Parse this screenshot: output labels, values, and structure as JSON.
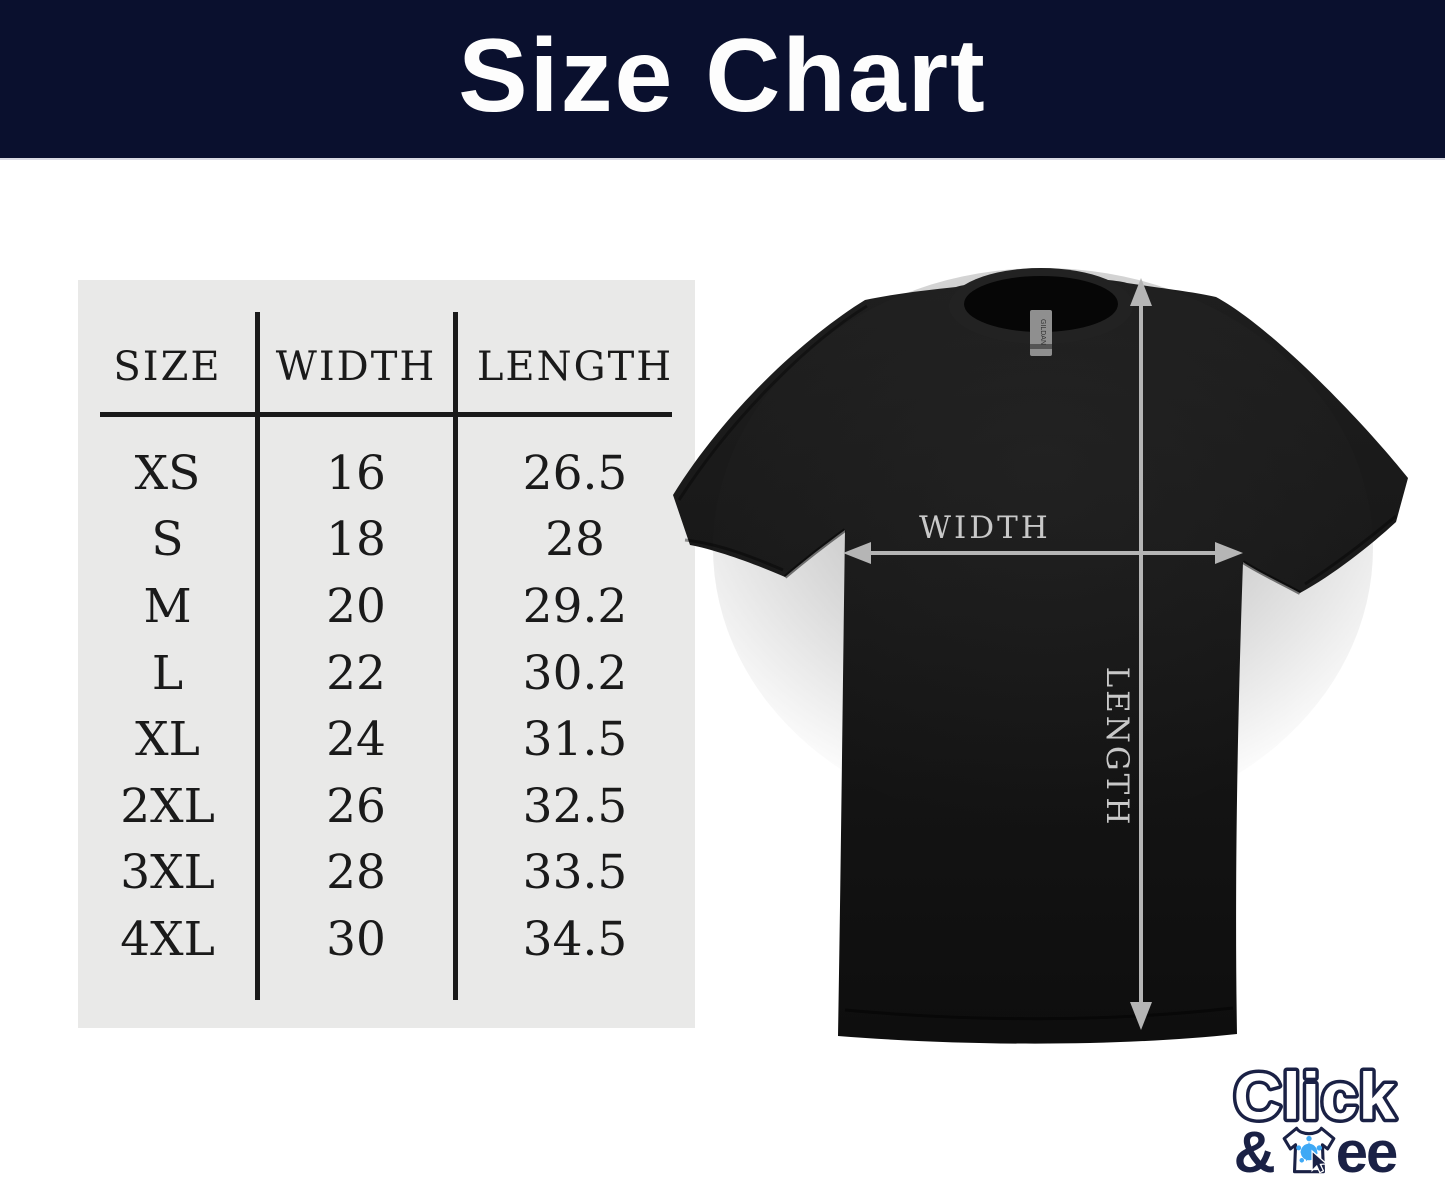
{
  "header": {
    "title": "Size Chart",
    "bg_color": "#0a102e",
    "text_color": "#fdfdfd"
  },
  "chart_data": {
    "type": "table",
    "title": "Size Chart",
    "columns": [
      "SIZE",
      "WIDTH",
      "LENGTH"
    ],
    "rows": [
      [
        "XS",
        "16",
        "26.5"
      ],
      [
        "S",
        "18",
        "28"
      ],
      [
        "M",
        "20",
        "29.2"
      ],
      [
        "L",
        "22",
        "30.2"
      ],
      [
        "XL",
        "24",
        "31.5"
      ],
      [
        "2XL",
        "26",
        "32.5"
      ],
      [
        "3XL",
        "28",
        "33.5"
      ],
      [
        "4XL",
        "30",
        "34.5"
      ]
    ],
    "panel_color": "#e9e9e8",
    "grid_on": true,
    "legend_position": "none"
  },
  "diagram": {
    "width_label": "WIDTH",
    "length_label": "LENGTH",
    "collar_tag": "GILDAN",
    "arrow_color": "#b5b5b5",
    "label_color": "#c8c8c8",
    "shirt_color": "#151515"
  },
  "logo": {
    "word_outlined": "Click",
    "ampersand": "&",
    "tee_suffix": "ee",
    "navy": "#1a2145",
    "splash_blue": "#3fa9f5"
  }
}
